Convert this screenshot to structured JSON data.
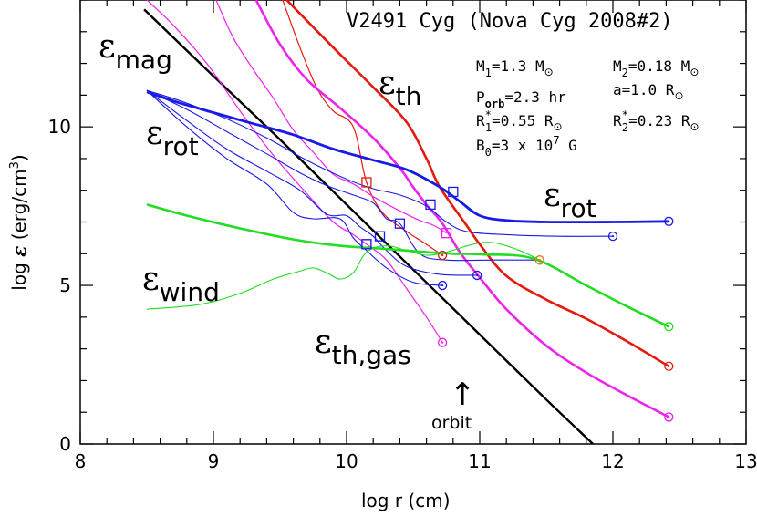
{
  "chart_data": {
    "type": "line",
    "title": "V2491 Cyg (Nova Cyg 2008#2)",
    "xlabel": "log r (cm)",
    "ylabel_parts": {
      "pre": "log ",
      "eps": "ε",
      "post": " (erg/cm",
      "sup": "3",
      "close": ")"
    },
    "xlim": [
      8,
      13
    ],
    "ylim": [
      0,
      14
    ],
    "xticks": [
      "8",
      "9",
      "10",
      "11",
      "12",
      "13"
    ],
    "yticks": [
      "0",
      "5",
      "10"
    ],
    "parameters": [
      {
        "base": "M",
        "sub": "1",
        "sup": "",
        "rest": "=1.3 M",
        "sun_sub": true,
        "tail": ""
      },
      {
        "base": "P",
        "sub": "orb",
        "sup": "",
        "rest": "=2.3 hr",
        "sun_sub": false,
        "tail": ""
      },
      {
        "base": "R",
        "sub": "1",
        "sup": "*",
        "rest": "=0.55 R",
        "sun_sub": true,
        "tail": ""
      },
      {
        "base": "B",
        "sub": "0",
        "sup": "",
        "rest": "=3 x 10",
        "sun_sub": false,
        "tail": "7",
        "tail_after": " G"
      },
      {
        "base": "M",
        "sub": "2",
        "sup": "",
        "rest": "=0.18 M",
        "sun_sub": true,
        "tail": ""
      },
      {
        "base": "a",
        "sub": "",
        "sup": "",
        "rest": "=1.0 R",
        "sun_sub": true,
        "tail": ""
      },
      {
        "base": "R",
        "sub": "2",
        "sup": "*",
        "rest": "=0.23 R",
        "sun_sub": true,
        "tail": ""
      }
    ],
    "curve_labels": [
      {
        "eps": "ε",
        "sub": "mag"
      },
      {
        "eps": "ε",
        "sub": "th"
      },
      {
        "eps": "ε",
        "sub": "rot"
      },
      {
        "eps": "ε",
        "sub": "rot"
      },
      {
        "eps": "ε",
        "sub": "wind"
      },
      {
        "eps": "ε",
        "sub": "th,gas"
      }
    ],
    "annotation": {
      "text": "orbit",
      "arrow": "↑",
      "x": 10.85
    },
    "colors": {
      "black": "#000000",
      "red": "#e41a0c",
      "magenta": "#ee22ee",
      "blue": "#1a1ae6",
      "green": "#22dd22"
    },
    "series": [
      {
        "id": "mag",
        "color": "black",
        "width": 2.4,
        "points": [
          [
            8.48,
            13.7
          ],
          [
            9.0,
            11.6
          ],
          [
            9.5,
            9.6
          ],
          [
            10.0,
            7.55
          ],
          [
            10.5,
            5.5
          ],
          [
            11.0,
            3.45
          ],
          [
            11.5,
            1.4
          ],
          [
            11.85,
            0.0
          ]
        ]
      },
      {
        "id": "th-main",
        "color": "red",
        "width": 2.6,
        "points": [
          [
            9.55,
            14.0
          ],
          [
            9.9,
            12.5
          ],
          [
            10.2,
            11.25
          ],
          [
            10.45,
            10.15
          ],
          [
            10.6,
            9.0
          ],
          [
            10.7,
            8.1
          ],
          [
            10.9,
            6.9
          ],
          [
            11.0,
            6.3
          ],
          [
            11.2,
            5.3
          ],
          [
            11.5,
            4.55
          ],
          [
            11.8,
            3.95
          ],
          [
            12.1,
            3.25
          ],
          [
            12.42,
            2.45
          ]
        ],
        "end_marker": "circle"
      },
      {
        "id": "th-red-thin",
        "color": "red",
        "width": 1.2,
        "points": [
          [
            9.52,
            14.0
          ],
          [
            9.65,
            12.5
          ],
          [
            9.78,
            11.2
          ],
          [
            9.9,
            10.5
          ],
          [
            10.05,
            10.0
          ],
          [
            10.15,
            8.25
          ],
          [
            10.27,
            7.3
          ],
          [
            10.45,
            6.7
          ],
          [
            10.58,
            6.35
          ],
          [
            10.72,
            5.95
          ]
        ],
        "markers": [
          [
            10.15,
            8.25,
            "square"
          ]
        ],
        "end_marker": "circle"
      },
      {
        "id": "th-magenta-main",
        "color": "magenta",
        "width": 2.6,
        "points": [
          [
            9.32,
            14.0
          ],
          [
            9.5,
            12.6
          ],
          [
            9.7,
            11.5
          ],
          [
            9.95,
            10.6
          ],
          [
            10.2,
            9.65
          ],
          [
            10.4,
            8.7
          ],
          [
            10.5,
            8.1
          ],
          [
            10.6,
            7.55
          ],
          [
            10.72,
            6.95
          ],
          [
            10.85,
            6.05
          ],
          [
            11.0,
            5.25
          ],
          [
            11.2,
            4.25
          ],
          [
            11.5,
            3.1
          ],
          [
            11.8,
            2.25
          ],
          [
            12.1,
            1.55
          ],
          [
            12.42,
            0.85
          ]
        ],
        "end_marker": "circle"
      },
      {
        "id": "th-magenta-2",
        "color": "magenta",
        "width": 1.2,
        "points": [
          [
            9.02,
            14.0
          ],
          [
            9.15,
            12.8
          ],
          [
            9.3,
            11.8
          ],
          [
            9.45,
            10.9
          ],
          [
            9.6,
            9.9
          ],
          [
            9.75,
            9.2
          ],
          [
            9.9,
            8.5
          ],
          [
            10.05,
            8.2
          ],
          [
            10.2,
            7.8
          ],
          [
            10.4,
            7.35
          ],
          [
            10.55,
            7.05
          ],
          [
            10.65,
            6.9
          ],
          [
            10.75,
            6.65
          ]
        ],
        "markers": [
          [
            10.75,
            6.65,
            "square"
          ]
        ]
      },
      {
        "id": "th-magenta-gas",
        "color": "magenta",
        "width": 1.2,
        "points": [
          [
            8.5,
            14.0
          ],
          [
            8.7,
            13.2
          ],
          [
            8.95,
            12.0
          ],
          [
            9.2,
            10.5
          ],
          [
            9.45,
            9.1
          ],
          [
            9.7,
            7.9
          ],
          [
            9.9,
            7.0
          ],
          [
            10.05,
            6.6
          ],
          [
            10.15,
            6.3
          ],
          [
            10.3,
            5.8
          ],
          [
            10.45,
            4.9
          ],
          [
            10.6,
            4.0
          ],
          [
            10.72,
            3.2
          ]
        ],
        "markers": [
          [
            10.15,
            6.3,
            "square"
          ]
        ],
        "end_marker": "circle"
      },
      {
        "id": "rot-thick",
        "color": "blue",
        "width": 2.8,
        "points": [
          [
            8.5,
            11.1
          ],
          [
            8.75,
            10.75
          ],
          [
            9.0,
            10.45
          ],
          [
            9.3,
            10.1
          ],
          [
            9.6,
            9.75
          ],
          [
            9.9,
            9.3
          ],
          [
            10.2,
            8.95
          ],
          [
            10.45,
            8.65
          ],
          [
            10.7,
            8.1
          ],
          [
            10.85,
            7.65
          ],
          [
            11.0,
            7.2
          ],
          [
            11.2,
            7.05
          ],
          [
            11.5,
            7.0
          ],
          [
            12.0,
            7.0
          ],
          [
            12.42,
            7.02
          ]
        ],
        "markers": [
          [
            10.8,
            7.95,
            "square"
          ]
        ],
        "end_marker": "circle"
      },
      {
        "id": "rot-2",
        "color": "blue",
        "width": 1.1,
        "points": [
          [
            8.5,
            11.15
          ],
          [
            8.8,
            10.75
          ],
          [
            9.1,
            10.25
          ],
          [
            9.4,
            9.65
          ],
          [
            9.7,
            8.95
          ],
          [
            10.0,
            8.35
          ],
          [
            10.2,
            8.05
          ],
          [
            10.4,
            7.85
          ],
          [
            10.6,
            7.5
          ],
          [
            10.75,
            7.0
          ],
          [
            10.9,
            6.7
          ],
          [
            11.2,
            6.6
          ],
          [
            11.6,
            6.55
          ],
          [
            12.0,
            6.55
          ]
        ],
        "markers": [
          [
            10.63,
            7.55,
            "square"
          ]
        ],
        "end_marker": "circle"
      },
      {
        "id": "rot-3",
        "color": "blue",
        "width": 1.1,
        "points": [
          [
            8.5,
            11.15
          ],
          [
            8.8,
            10.55
          ],
          [
            9.1,
            9.85
          ],
          [
            9.4,
            9.15
          ],
          [
            9.65,
            8.55
          ],
          [
            9.85,
            8.15
          ],
          [
            10.05,
            7.85
          ],
          [
            10.2,
            7.6
          ],
          [
            10.3,
            7.1
          ],
          [
            10.4,
            6.95
          ],
          [
            10.55,
            6.0
          ],
          [
            10.75,
            5.8
          ],
          [
            11.1,
            5.8
          ],
          [
            11.45,
            5.8
          ]
        ],
        "markers": [
          [
            10.4,
            6.95,
            "square"
          ]
        ],
        "end_marker": "circle"
      },
      {
        "id": "rot-4",
        "color": "blue",
        "width": 1.1,
        "points": [
          [
            8.5,
            11.15
          ],
          [
            8.8,
            10.2
          ],
          [
            9.1,
            9.3
          ],
          [
            9.4,
            8.6
          ],
          [
            9.65,
            8.0
          ],
          [
            9.85,
            7.25
          ],
          [
            10.0,
            7.2
          ],
          [
            10.1,
            6.85
          ],
          [
            10.2,
            6.55
          ],
          [
            10.3,
            6.1
          ],
          [
            10.45,
            5.6
          ],
          [
            10.7,
            5.35
          ],
          [
            10.98,
            5.32
          ]
        ],
        "markers": [
          [
            10.25,
            6.55,
            "square"
          ]
        ],
        "end_marker": "circle"
      },
      {
        "id": "rot-5",
        "color": "blue",
        "width": 1.1,
        "points": [
          [
            8.5,
            11.15
          ],
          [
            8.8,
            10.0
          ],
          [
            9.1,
            9.0
          ],
          [
            9.4,
            8.2
          ],
          [
            9.6,
            7.3
          ],
          [
            9.75,
            7.1
          ],
          [
            9.95,
            7.1
          ],
          [
            10.05,
            6.5
          ],
          [
            10.15,
            6.1
          ],
          [
            10.3,
            5.55
          ],
          [
            10.5,
            5.1
          ],
          [
            10.72,
            5.0
          ]
        ],
        "markers": [
          [
            10.15,
            6.3,
            "square"
          ]
        ],
        "end_marker": "circle"
      },
      {
        "id": "wind-thick",
        "color": "green",
        "width": 2.6,
        "points": [
          [
            8.5,
            7.55
          ],
          [
            8.8,
            7.2
          ],
          [
            9.2,
            6.8
          ],
          [
            9.6,
            6.45
          ],
          [
            9.95,
            6.25
          ],
          [
            10.3,
            6.15
          ],
          [
            10.6,
            6.05
          ],
          [
            10.8,
            6.0
          ],
          [
            11.0,
            5.98
          ],
          [
            11.4,
            5.85
          ],
          [
            11.8,
            5.0
          ],
          [
            12.1,
            4.35
          ],
          [
            12.42,
            3.7
          ]
        ],
        "end_marker": "circle"
      },
      {
        "id": "wind-thin",
        "color": "green",
        "width": 1.1,
        "points": [
          [
            8.5,
            4.25
          ],
          [
            8.9,
            4.4
          ],
          [
            9.2,
            4.75
          ],
          [
            9.45,
            5.2
          ],
          [
            9.65,
            5.45
          ],
          [
            9.75,
            5.55
          ],
          [
            9.85,
            5.4
          ],
          [
            9.95,
            5.2
          ],
          [
            10.05,
            5.4
          ],
          [
            10.15,
            6.05
          ],
          [
            10.3,
            6.25
          ],
          [
            10.45,
            6.1
          ],
          [
            10.6,
            5.95
          ],
          [
            10.75,
            6.05
          ],
          [
            10.95,
            6.3
          ],
          [
            11.1,
            6.35
          ],
          [
            11.3,
            6.1
          ],
          [
            11.45,
            5.8
          ]
        ],
        "end_marker": "circle",
        "end_color": "#ee8800"
      }
    ]
  }
}
